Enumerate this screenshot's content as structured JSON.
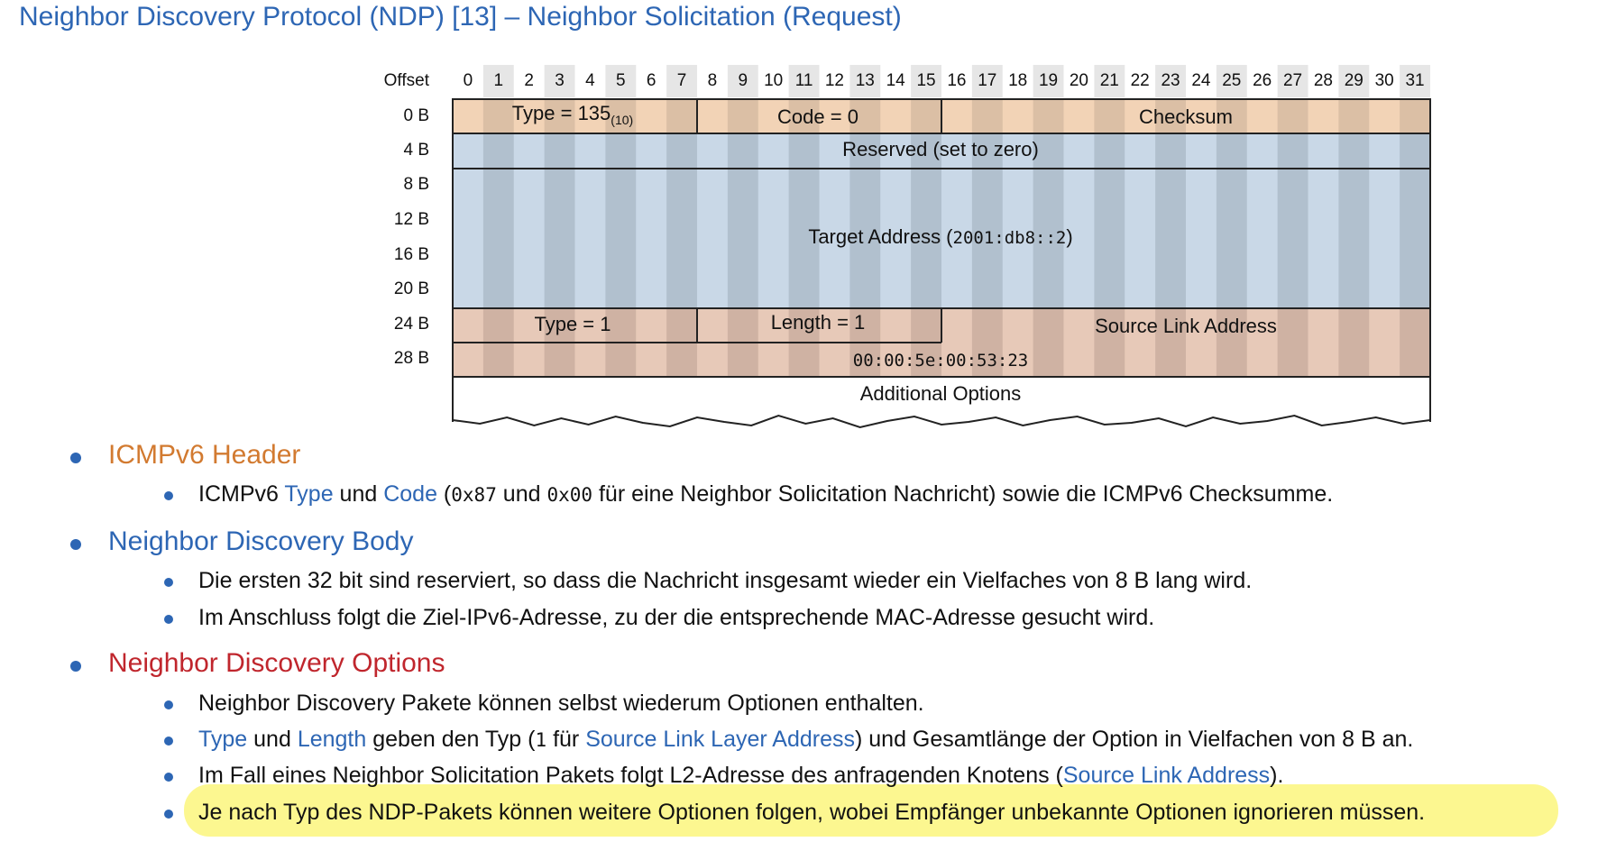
{
  "title": "Neighbor Discovery Protocol (NDP) [13] – Neighbor Solicitation (Request)",
  "diagram": {
    "offset_header": "Offset",
    "bits": [
      "0",
      "1",
      "2",
      "3",
      "4",
      "5",
      "6",
      "7",
      "8",
      "9",
      "10",
      "11",
      "12",
      "13",
      "14",
      "15",
      "16",
      "17",
      "18",
      "19",
      "20",
      "21",
      "22",
      "23",
      "24",
      "25",
      "26",
      "27",
      "28",
      "29",
      "30",
      "31"
    ],
    "row_offsets": [
      "0 B",
      "4 B",
      "8 B",
      "12 B",
      "16 B",
      "20 B",
      "24 B",
      "28 B"
    ],
    "fields": {
      "type_135": "Type = 135",
      "type_135_sub": "(10)",
      "code": "Code = 0",
      "checksum": "Checksum",
      "reserved": "Reserved (set to zero)",
      "target_label": "Target Address (",
      "target_value": "2001:db8::2",
      "target_close": ")",
      "opt_type": "Type = 1",
      "opt_length": "Length = 1",
      "source_link": "Source Link Address",
      "mac": "00:00:5e:00:53:23",
      "additional": "Additional Options"
    },
    "colors": {
      "header": "#f2d3b6",
      "header_dark": "#dbbfa5",
      "body": "#c9d8e7",
      "body_dark": "#b1c0ce",
      "option": "#e7c9b8",
      "option_dark": "#cfb2a3"
    }
  },
  "bullets": {
    "icmp_header": "ICMPv6 Header",
    "icmp_sub": {
      "p1": "ICMPv6 ",
      "type": "Type",
      "p2": " und ",
      "code": "Code",
      "p3": " (",
      "hex1": "0x87",
      "p4": " und ",
      "hex2": "0x00",
      "p5": " für eine Neighbor Solicitation Nachricht) sowie die ICMPv6 Checksumme."
    },
    "nd_body": "Neighbor Discovery Body",
    "nd_body_sub1": "Die ersten 32 bit sind reserviert, so dass die Nachricht insgesamt wieder ein Vielfaches von 8 B lang wird.",
    "nd_body_sub2": "Im Anschluss folgt die Ziel-IPv6-Adresse, zu der die entsprechende MAC-Adresse gesucht wird.",
    "nd_options": "Neighbor Discovery Options",
    "nd_opt_sub1": "Neighbor Discovery Pakete können selbst wiederum Optionen enthalten.",
    "nd_opt_sub2": {
      "type": "Type",
      "p1": " und ",
      "length": "Length",
      "p2": " geben den Typ (",
      "one": "1",
      "p3": " für ",
      "sla": "Source Link Layer Address",
      "p4": ") und Gesamtlänge der Option in Vielfachen von 8 B an."
    },
    "nd_opt_sub3": {
      "p1": "Im Fall eines Neighbor Solicitation Pakets folgt L2-Adresse des anfragenden Knotens (",
      "sla": "Source Link Address",
      "p2": ")."
    },
    "nd_opt_sub4": "Je nach Typ des NDP-Pakets können weitere Optionen folgen, wobei Empfänger unbekannte Optionen ignorieren müssen."
  }
}
